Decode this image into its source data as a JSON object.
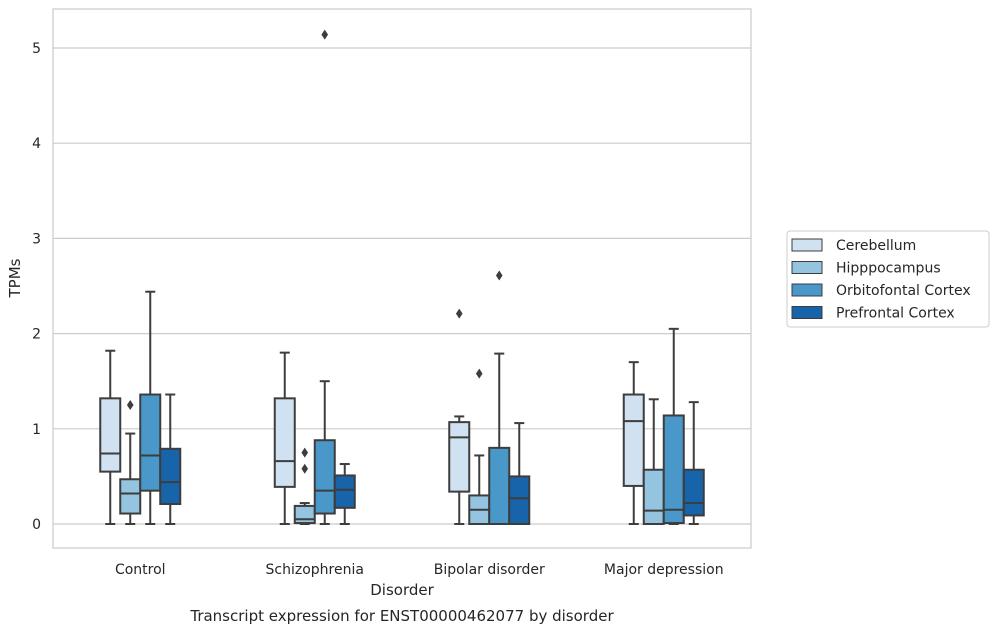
{
  "chart_data": {
    "type": "box",
    "title": "Transcript expression for ENST00000462077 by disorder",
    "xlabel": "Disorder",
    "ylabel": "TPMs",
    "ylim": [
      -0.25,
      5.4
    ],
    "yticks": [
      0,
      1,
      2,
      3,
      4,
      5
    ],
    "categories": [
      "Control",
      "Schizophrenia",
      "Bipolar disorder",
      "Major depression"
    ],
    "grid": "horizontal",
    "legend_position": "right",
    "series": [
      {
        "name": "Cerebellum",
        "color": "#d0e1f2",
        "boxes": [
          {
            "whislo": 0.0,
            "q1": 0.55,
            "med": 0.74,
            "q3": 1.32,
            "whishi": 1.82,
            "fliers": []
          },
          {
            "whislo": 0.0,
            "q1": 0.39,
            "med": 0.66,
            "q3": 1.32,
            "whishi": 1.8,
            "fliers": []
          },
          {
            "whislo": 0.0,
            "q1": 0.34,
            "med": 0.91,
            "q3": 1.07,
            "whishi": 1.13,
            "fliers": [
              2.21
            ]
          },
          {
            "whislo": 0.0,
            "q1": 0.4,
            "med": 1.08,
            "q3": 1.36,
            "whishi": 1.7,
            "fliers": []
          }
        ]
      },
      {
        "name": "Hipppocampus",
        "color": "#94c4df",
        "boxes": [
          {
            "whislo": 0.0,
            "q1": 0.11,
            "med": 0.32,
            "q3": 0.47,
            "whishi": 0.95,
            "fliers": [
              1.25
            ]
          },
          {
            "whislo": 0.0,
            "q1": 0.01,
            "med": 0.05,
            "q3": 0.19,
            "whishi": 0.22,
            "fliers": [
              0.75,
              0.58
            ]
          },
          {
            "whislo": 0.0,
            "q1": 0.0,
            "med": 0.15,
            "q3": 0.3,
            "whishi": 0.72,
            "fliers": [
              1.58
            ]
          },
          {
            "whislo": 0.0,
            "q1": 0.0,
            "med": 0.14,
            "q3": 0.57,
            "whishi": 1.31,
            "fliers": []
          }
        ]
      },
      {
        "name": "Orbitofontal Cortex",
        "color": "#4a98c9",
        "boxes": [
          {
            "whislo": 0.0,
            "q1": 0.35,
            "med": 0.72,
            "q3": 1.36,
            "whishi": 2.44,
            "fliers": []
          },
          {
            "whislo": 0.0,
            "q1": 0.11,
            "med": 0.35,
            "q3": 0.88,
            "whishi": 1.5,
            "fliers": [
              5.14
            ]
          },
          {
            "whislo": 0.0,
            "q1": 0.0,
            "med": 0.0,
            "q3": 0.8,
            "whishi": 1.79,
            "fliers": [
              2.61
            ]
          },
          {
            "whislo": 0.0,
            "q1": 0.01,
            "med": 0.15,
            "q3": 1.14,
            "whishi": 2.05,
            "fliers": []
          }
        ]
      },
      {
        "name": "Prefrontal Cortex",
        "color": "#1764ab",
        "boxes": [
          {
            "whislo": 0.0,
            "q1": 0.21,
            "med": 0.44,
            "q3": 0.79,
            "whishi": 1.36,
            "fliers": []
          },
          {
            "whislo": 0.0,
            "q1": 0.17,
            "med": 0.36,
            "q3": 0.51,
            "whishi": 0.63,
            "fliers": []
          },
          {
            "whislo": 0.0,
            "q1": 0.0,
            "med": 0.27,
            "q3": 0.5,
            "whishi": 1.06,
            "fliers": []
          },
          {
            "whislo": 0.0,
            "q1": 0.09,
            "med": 0.22,
            "q3": 0.57,
            "whishi": 1.28,
            "fliers": []
          }
        ]
      }
    ]
  }
}
